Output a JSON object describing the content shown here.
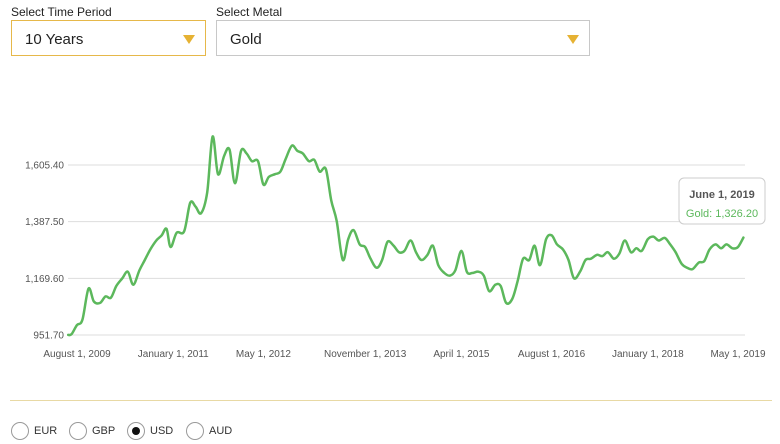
{
  "controls": {
    "time_period": {
      "label": "Select Time Period",
      "value": "10 Years"
    },
    "metal": {
      "label": "Select Metal",
      "value": "Gold"
    }
  },
  "currencies": [
    {
      "code": "EUR",
      "selected": false
    },
    {
      "code": "GBP",
      "selected": false
    },
    {
      "code": "USD",
      "selected": true
    },
    {
      "code": "AUD",
      "selected": false
    }
  ],
  "tooltip": {
    "date": "June 1, 2019",
    "text": "Gold: 1,326.20"
  },
  "colors": {
    "line": "#5cb85c",
    "accent": "#e6b233",
    "grid": "#dddddd"
  },
  "chart_data": {
    "type": "line",
    "title": "",
    "xlabel": "",
    "ylabel": "",
    "grid": true,
    "ylim": [
      951.7,
      1730
    ],
    "yticks": [
      951.7,
      1169.6,
      1387.5,
      1605.4
    ],
    "ytick_labels": [
      "951.70",
      "1,169.60",
      "1,387.50",
      "1,605.40"
    ],
    "xticks": [
      {
        "label": "August 1, 2009",
        "t": 2009.58
      },
      {
        "label": "January 1, 2011",
        "t": 2011.0
      },
      {
        "label": "May 1, 2012",
        "t": 2012.33
      },
      {
        "label": "November 1, 2013",
        "t": 2013.83
      },
      {
        "label": "April 1, 2015",
        "t": 2015.25
      },
      {
        "label": "August 1, 2016",
        "t": 2016.58
      },
      {
        "label": "January 1, 2018",
        "t": 2018.0
      },
      {
        "label": "May 1, 2019",
        "t": 2019.33
      }
    ],
    "series": [
      {
        "values": [
          [
            2009.45,
            952
          ],
          [
            2009.5,
            955
          ],
          [
            2009.58,
            990
          ],
          [
            2009.66,
            1010
          ],
          [
            2009.75,
            1130
          ],
          [
            2009.83,
            1080
          ],
          [
            2009.92,
            1075
          ],
          [
            2010.0,
            1100
          ],
          [
            2010.08,
            1095
          ],
          [
            2010.16,
            1140
          ],
          [
            2010.25,
            1170
          ],
          [
            2010.33,
            1195
          ],
          [
            2010.41,
            1145
          ],
          [
            2010.5,
            1200
          ],
          [
            2010.58,
            1240
          ],
          [
            2010.66,
            1280
          ],
          [
            2010.75,
            1315
          ],
          [
            2010.83,
            1335
          ],
          [
            2010.9,
            1360
          ],
          [
            2010.96,
            1290
          ],
          [
            2011.05,
            1345
          ],
          [
            2011.16,
            1350
          ],
          [
            2011.25,
            1460
          ],
          [
            2011.33,
            1445
          ],
          [
            2011.41,
            1420
          ],
          [
            2011.5,
            1500
          ],
          [
            2011.58,
            1715
          ],
          [
            2011.66,
            1570
          ],
          [
            2011.75,
            1640
          ],
          [
            2011.83,
            1665
          ],
          [
            2011.91,
            1535
          ],
          [
            2012.0,
            1660
          ],
          [
            2012.08,
            1650
          ],
          [
            2012.16,
            1620
          ],
          [
            2012.25,
            1620
          ],
          [
            2012.33,
            1530
          ],
          [
            2012.41,
            1560
          ],
          [
            2012.5,
            1570
          ],
          [
            2012.58,
            1580
          ],
          [
            2012.66,
            1630
          ],
          [
            2012.75,
            1680
          ],
          [
            2012.83,
            1660
          ],
          [
            2012.91,
            1650
          ],
          [
            2013.0,
            1620
          ],
          [
            2013.08,
            1625
          ],
          [
            2013.16,
            1580
          ],
          [
            2013.25,
            1590
          ],
          [
            2013.33,
            1470
          ],
          [
            2013.41,
            1390
          ],
          [
            2013.5,
            1240
          ],
          [
            2013.58,
            1320
          ],
          [
            2013.66,
            1355
          ],
          [
            2013.75,
            1300
          ],
          [
            2013.83,
            1290
          ],
          [
            2013.91,
            1245
          ],
          [
            2014.0,
            1210
          ],
          [
            2014.08,
            1240
          ],
          [
            2014.16,
            1310
          ],
          [
            2014.25,
            1295
          ],
          [
            2014.33,
            1270
          ],
          [
            2014.41,
            1275
          ],
          [
            2014.5,
            1315
          ],
          [
            2014.58,
            1270
          ],
          [
            2014.66,
            1240
          ],
          [
            2014.75,
            1260
          ],
          [
            2014.83,
            1295
          ],
          [
            2014.91,
            1220
          ],
          [
            2015.0,
            1190
          ],
          [
            2015.08,
            1180
          ],
          [
            2015.16,
            1200
          ],
          [
            2015.25,
            1275
          ],
          [
            2015.33,
            1195
          ],
          [
            2015.41,
            1190
          ],
          [
            2015.5,
            1195
          ],
          [
            2015.58,
            1180
          ],
          [
            2015.66,
            1120
          ],
          [
            2015.75,
            1145
          ],
          [
            2015.83,
            1140
          ],
          [
            2015.91,
            1075
          ],
          [
            2016.0,
            1090
          ],
          [
            2016.08,
            1160
          ],
          [
            2016.16,
            1245
          ],
          [
            2016.25,
            1240
          ],
          [
            2016.33,
            1295
          ],
          [
            2016.41,
            1220
          ],
          [
            2016.5,
            1320
          ],
          [
            2016.58,
            1335
          ],
          [
            2016.66,
            1300
          ],
          [
            2016.75,
            1280
          ],
          [
            2016.83,
            1240
          ],
          [
            2016.91,
            1170
          ],
          [
            2017.0,
            1195
          ],
          [
            2017.08,
            1240
          ],
          [
            2017.16,
            1245
          ],
          [
            2017.25,
            1260
          ],
          [
            2017.33,
            1255
          ],
          [
            2017.41,
            1270
          ],
          [
            2017.5,
            1245
          ],
          [
            2017.58,
            1265
          ],
          [
            2017.66,
            1315
          ],
          [
            2017.75,
            1270
          ],
          [
            2017.83,
            1285
          ],
          [
            2017.91,
            1275
          ],
          [
            2018.0,
            1320
          ],
          [
            2018.08,
            1330
          ],
          [
            2018.16,
            1315
          ],
          [
            2018.25,
            1325
          ],
          [
            2018.33,
            1300
          ],
          [
            2018.41,
            1270
          ],
          [
            2018.5,
            1225
          ],
          [
            2018.58,
            1210
          ],
          [
            2018.66,
            1205
          ],
          [
            2018.75,
            1230
          ],
          [
            2018.83,
            1235
          ],
          [
            2018.91,
            1280
          ],
          [
            2019.0,
            1300
          ],
          [
            2019.08,
            1285
          ],
          [
            2019.16,
            1300
          ],
          [
            2019.25,
            1285
          ],
          [
            2019.33,
            1290
          ],
          [
            2019.41,
            1326.2
          ]
        ]
      }
    ]
  }
}
